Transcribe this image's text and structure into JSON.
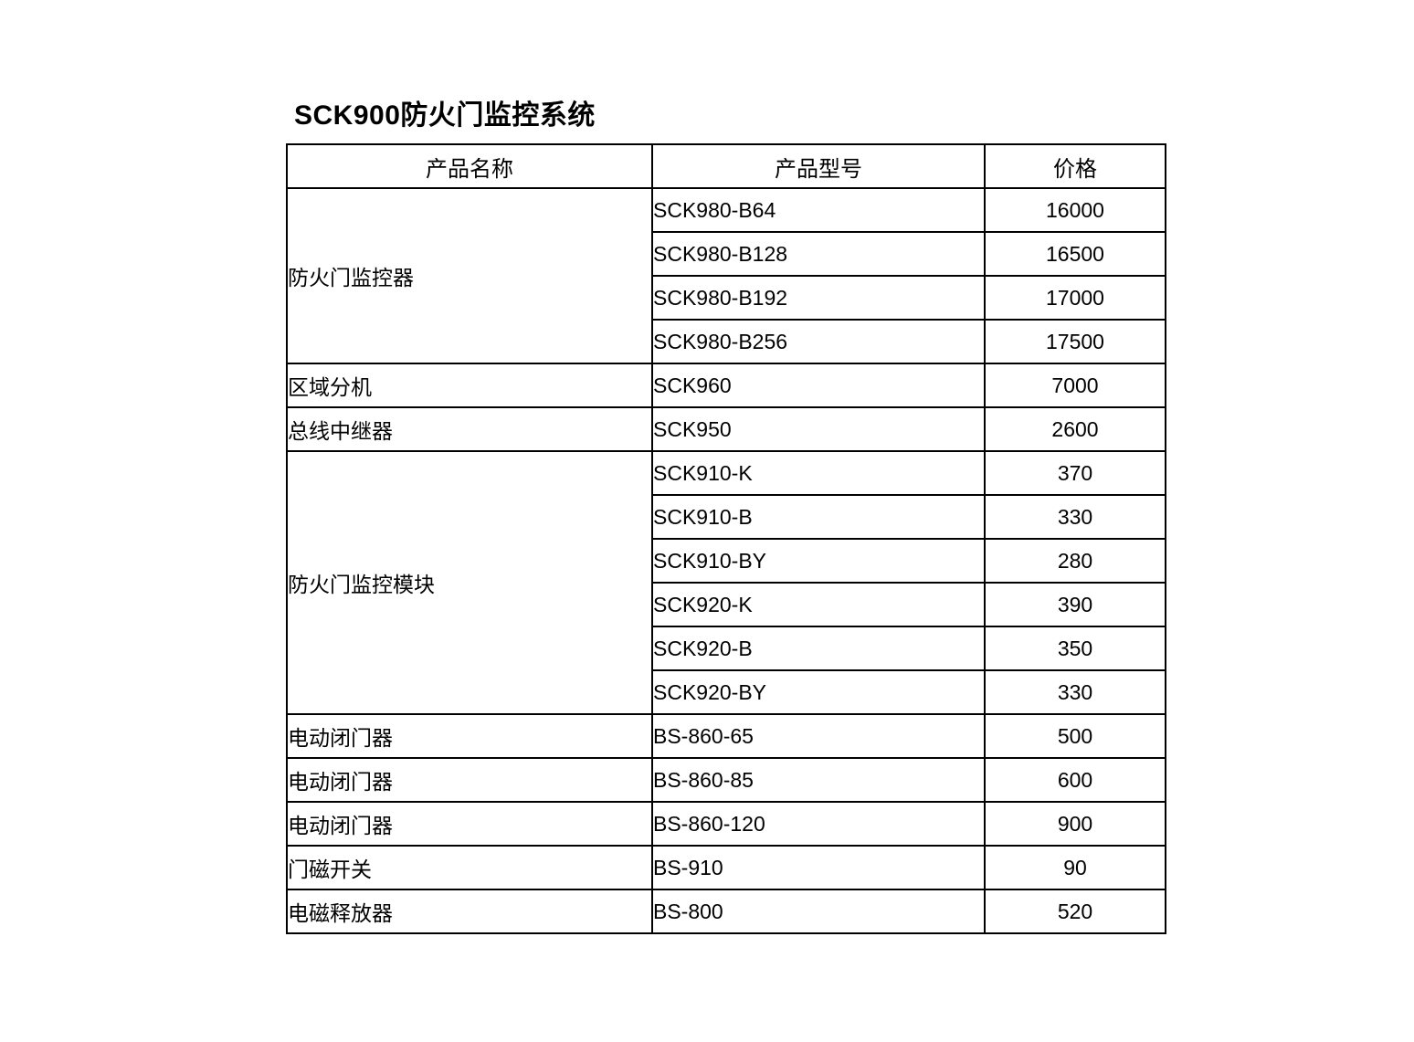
{
  "page": {
    "title": "SCK900防火门监控系统"
  },
  "colors": {
    "background": "#ffffff",
    "text": "#000000",
    "table_border": "#000000"
  },
  "table": {
    "headers": [
      "产品名称",
      "产品型号",
      "价格"
    ],
    "groups": [
      {
        "name": "防火门监控器",
        "items": [
          {
            "model": "SCK980-B64",
            "price": "16000"
          },
          {
            "model": "SCK980-B128",
            "price": "16500"
          },
          {
            "model": "SCK980-B192",
            "price": "17000"
          },
          {
            "model": "SCK980-B256",
            "price": "17500"
          }
        ]
      },
      {
        "name": "区域分机",
        "items": [
          {
            "model": "SCK960",
            "price": "7000"
          }
        ]
      },
      {
        "name": "总线中继器",
        "items": [
          {
            "model": "SCK950",
            "price": "2600"
          }
        ]
      },
      {
        "name": "防火门监控模块",
        "items": [
          {
            "model": "SCK910-K",
            "price": "370"
          },
          {
            "model": "SCK910-B",
            "price": "330"
          },
          {
            "model": "SCK910-BY",
            "price": "280"
          },
          {
            "model": "SCK920-K",
            "price": "390"
          },
          {
            "model": "SCK920-B",
            "price": "350"
          },
          {
            "model": "SCK920-BY",
            "price": "330"
          }
        ]
      },
      {
        "name": "电动闭门器",
        "items": [
          {
            "model": "BS-860-65",
            "price": "500"
          }
        ]
      },
      {
        "name": "电动闭门器",
        "items": [
          {
            "model": "BS-860-85",
            "price": "600"
          }
        ]
      },
      {
        "name": "电动闭门器",
        "items": [
          {
            "model": "BS-860-120",
            "price": "900"
          }
        ]
      },
      {
        "name": "门磁开关",
        "items": [
          {
            "model": "BS-910",
            "price": "90"
          }
        ]
      },
      {
        "name": "电磁释放器",
        "items": [
          {
            "model": "BS-800",
            "price": "520"
          }
        ]
      }
    ]
  }
}
